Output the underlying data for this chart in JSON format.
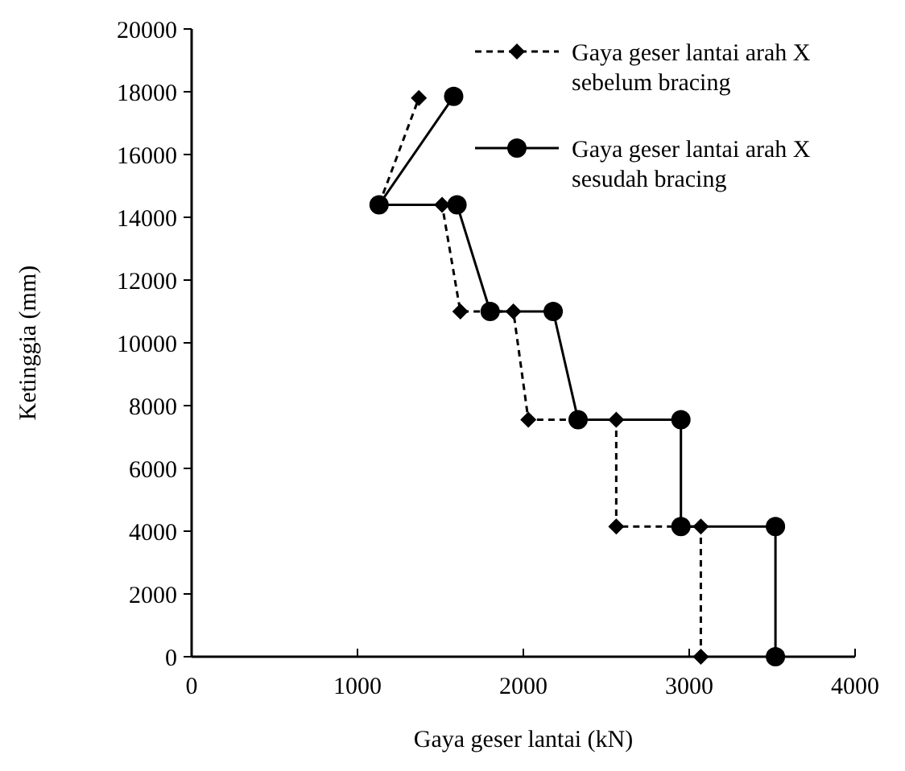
{
  "chart_data": {
    "type": "line",
    "xlabel": "Gaya geser lantai (kN)",
    "ylabel": "Ketinggia (mm)",
    "xlim": [
      0,
      4000
    ],
    "xticks": [
      0,
      1000,
      2000,
      3000,
      4000
    ],
    "ylim": [
      0,
      20000
    ],
    "yticks": [
      0,
      2000,
      4000,
      6000,
      8000,
      10000,
      12000,
      14000,
      16000,
      18000,
      20000
    ],
    "grid": false,
    "legend": "top right",
    "series": [
      {
        "name": "Gaya geser lantai arah X sebelum bracing",
        "color": "#000000",
        "marker": "diamond",
        "line_style": "dashed",
        "x": [
          3070,
          3070,
          2560,
          2560,
          2030,
          1940,
          1620,
          1510,
          1130,
          1370
        ],
        "values": [
          0,
          4150,
          4150,
          7550,
          7550,
          11000,
          11000,
          14400,
          14400,
          17800
        ]
      },
      {
        "name": "Gaya geser lantai arah X sesudah bracing",
        "color": "#000000",
        "marker": "circle",
        "line_style": "solid",
        "x": [
          3520,
          3520,
          2950,
          2950,
          2330,
          2180,
          1800,
          1600,
          1130,
          1580
        ],
        "values": [
          0,
          4150,
          4150,
          7550,
          7550,
          11000,
          11000,
          14400,
          14400,
          17850
        ]
      }
    ]
  }
}
